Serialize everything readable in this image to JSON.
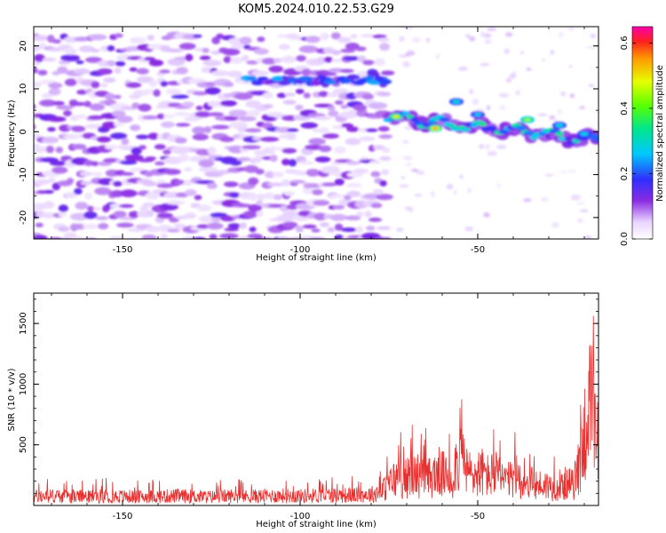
{
  "title": "KOM5.2024.010.22.53.G29",
  "colors": {
    "snr_line": "#e8302f",
    "axes": "#000000",
    "background": "#ffffff"
  },
  "chart_data": [
    {
      "type": "heatmap",
      "title": "KOM5.2024.010.22.53.G29",
      "xlabel": "Height of straight line (km)",
      "ylabel": "Frequency (Hz)",
      "xlim": [
        -175,
        -16
      ],
      "ylim": [
        -25,
        24.5
      ],
      "x_ticks": [
        -150,
        -100,
        -50
      ],
      "x_tick_labels": [
        "-150",
        "-100",
        "-50"
      ],
      "y_ticks": [
        -20,
        -10,
        0,
        10,
        20
      ],
      "y_tick_labels": [
        "-20",
        "-10",
        "0",
        "10",
        "20"
      ],
      "colorbar": {
        "label": "Normalized spectral amplitude",
        "range": [
          0,
          0.65
        ],
        "ticks": [
          0.0,
          0.2,
          0.4,
          0.6
        ],
        "tick_labels": [
          "0.0",
          "0.2",
          "0.4",
          "0.6"
        ],
        "colormap": "rainbow-violet-to-magenta"
      },
      "features": [
        {
          "name": "broadband noise",
          "x_range": [
            -175,
            -75
          ],
          "freq_range": [
            -25,
            24
          ],
          "amplitude": 0.1
        },
        {
          "name": "band near 12 Hz",
          "x_range": [
            -115,
            -75
          ],
          "freq_center": 12,
          "amplitude_peak": 0.25
        },
        {
          "name": "main signal",
          "x_start": -75,
          "freq_start": 3.5,
          "x_end": -16,
          "freq_end": -2,
          "amplitude_peak": 0.55
        }
      ]
    },
    {
      "type": "line",
      "xlabel": "Height of straight line (km)",
      "ylabel": "SNR (10 * v/v)",
      "xlim": [
        -175,
        -16
      ],
      "ylim": [
        0,
        1750
      ],
      "x_ticks": [
        -150,
        -100,
        -50
      ],
      "x_tick_labels": [
        "-150",
        "-100",
        "-50"
      ],
      "y_ticks": [
        500,
        1000,
        1500
      ],
      "y_tick_labels": [
        "500",
        "1000",
        "1500"
      ],
      "series": [
        {
          "x": [
            -175,
            -170,
            -165,
            -160,
            -155,
            -150,
            -145,
            -140,
            -135,
            -130,
            -125,
            -120,
            -115,
            -110,
            -105,
            -100,
            -95,
            -90,
            -85,
            -80,
            -77,
            -75,
            -73,
            -71,
            -69,
            -67,
            -65,
            -63,
            -61,
            -59,
            -57,
            -56,
            -55,
            -53,
            -51,
            -49,
            -47,
            -45,
            -43,
            -41,
            -39,
            -37,
            -35,
            -33,
            -31,
            -29,
            -27,
            -25,
            -23,
            -21,
            -20,
            -19,
            -18,
            -17,
            -16
          ],
          "y": [
            110,
            120,
            115,
            110,
            120,
            115,
            110,
            115,
            120,
            115,
            110,
            120,
            115,
            120,
            125,
            120,
            125,
            130,
            130,
            140,
            180,
            270,
            350,
            310,
            380,
            390,
            330,
            360,
            430,
            370,
            350,
            560,
            700,
            420,
            380,
            430,
            370,
            400,
            330,
            310,
            370,
            290,
            280,
            260,
            260,
            230,
            220,
            290,
            260,
            600,
            900,
            1250,
            1200,
            900,
            750
          ]
        }
      ]
    }
  ]
}
